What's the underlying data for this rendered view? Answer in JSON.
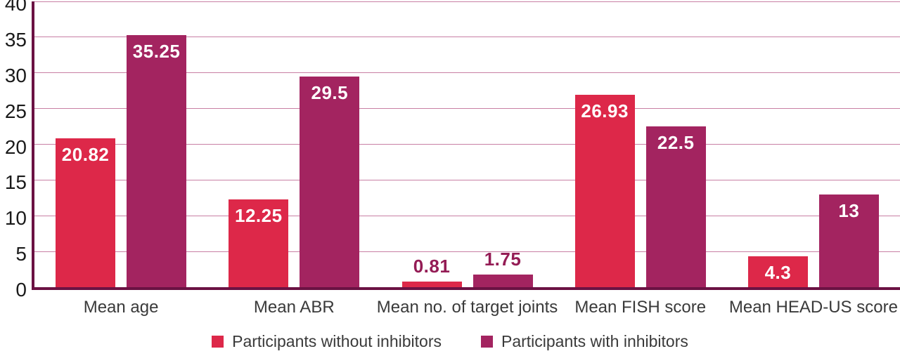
{
  "chart_data": {
    "type": "bar",
    "categories": [
      "Mean age",
      "Mean ABR",
      "Mean no. of target joints",
      "Mean FISH score",
      "Mean HEAD-US score"
    ],
    "series": [
      {
        "name": "Participants without inhibitors",
        "color": "#DD2849",
        "values": [
          20.82,
          12.25,
          0.81,
          26.93,
          4.3
        ]
      },
      {
        "name": "Participants with inhibitors",
        "color": "#A32460",
        "values": [
          35.25,
          29.5,
          1.75,
          22.5,
          13
        ]
      }
    ],
    "y_tick_labels": [
      "0",
      "5",
      "10",
      "15",
      "20",
      "25",
      "30",
      "35",
      "40"
    ],
    "ylim": [
      0,
      40
    ],
    "ytick_step": 5,
    "grid": true,
    "legend_position": "bottom"
  },
  "colors": {
    "axis": "#6B1243",
    "gridline": "#C87FA4",
    "tick_label": "#1A1A1A",
    "category_label": "#3A3A3A",
    "value_label_inside": "#FFFFFF",
    "value_label_outside": "#941C55",
    "legend_text": "#3A3A3A",
    "background": "#FFFFFF"
  }
}
